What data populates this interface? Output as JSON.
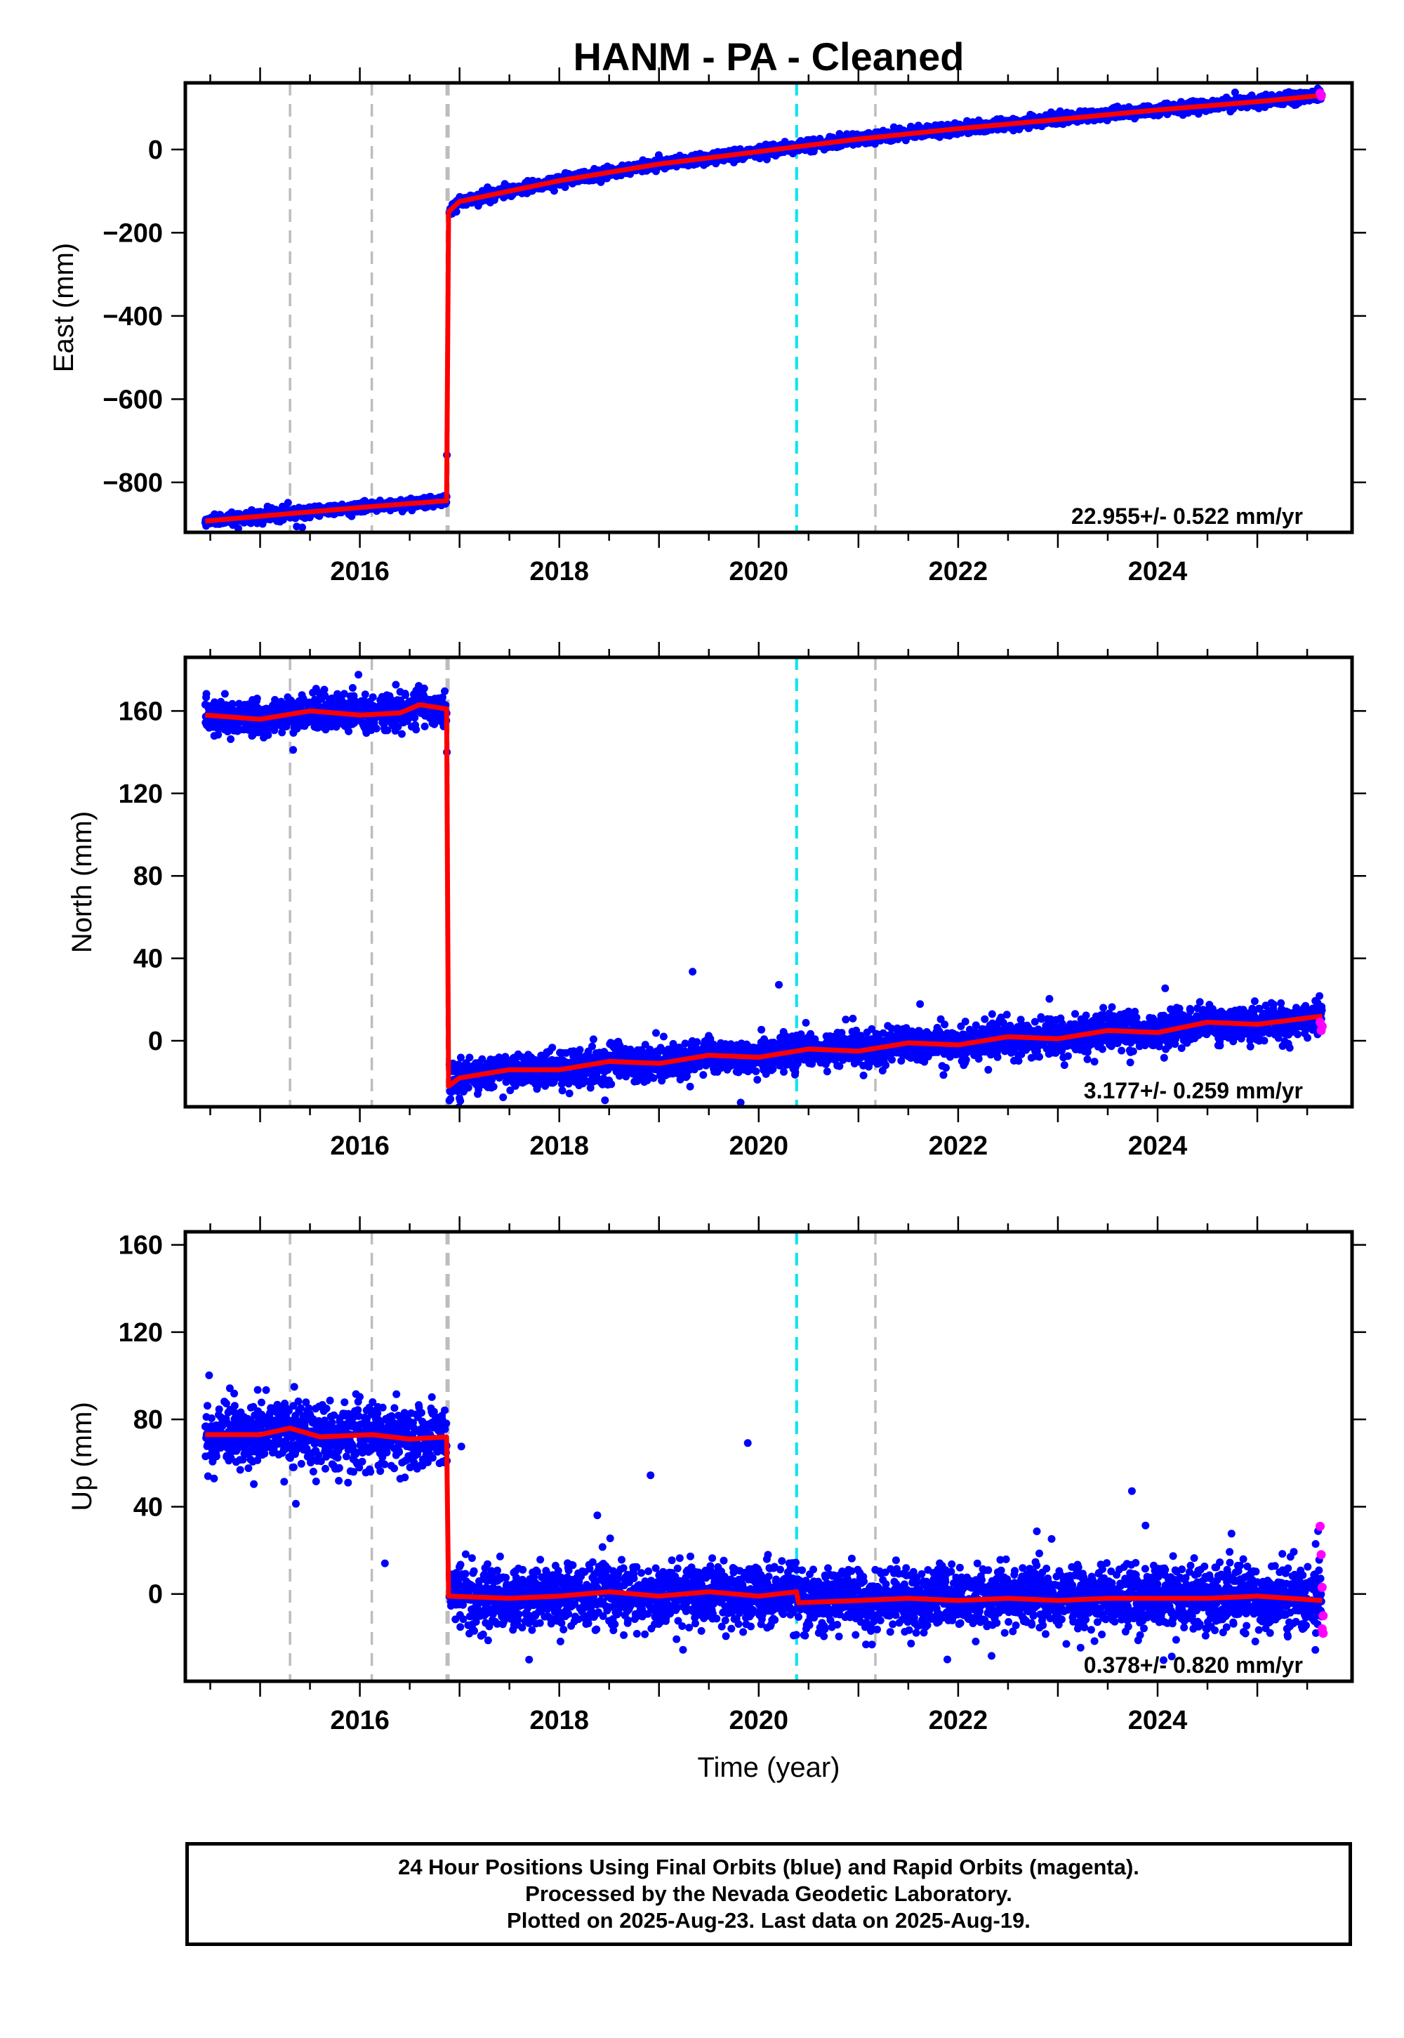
{
  "page": {
    "title": "HANM  - PA - Cleaned",
    "footer_lines": [
      "24 Hour Positions Using Final Orbits (blue) and Rapid Orbits (magenta).",
      "Processed by the Nevada Geodetic Laboratory.",
      "Plotted on 2025-Aug-23. Last data on 2025-Aug-19."
    ]
  },
  "chart_data": [
    {
      "type": "scatter",
      "panel": "east",
      "ylabel": "East (mm)",
      "xlabel": "",
      "xlim": [
        2014.25,
        2025.95
      ],
      "ylim": [
        -920,
        160
      ],
      "yticks": [
        0,
        -200,
        -400,
        -600,
        -800
      ],
      "xticks": [
        2016,
        2018,
        2020,
        2022,
        2024
      ],
      "rate_label": "22.955+/- 0.522 mm/yr",
      "steps": [
        2015.3,
        2016.12,
        2016.88,
        2021.17
      ],
      "highlight_line": 2020.38,
      "model": [
        [
          2014.45,
          -893
        ],
        [
          2015.3,
          -875
        ],
        [
          2016.12,
          -858
        ],
        [
          2016.87,
          -844
        ],
        [
          2016.89,
          -150
        ],
        [
          2017.0,
          -125
        ],
        [
          2017.5,
          -100
        ],
        [
          2018.0,
          -75
        ],
        [
          2019.0,
          -35
        ],
        [
          2020.0,
          -5
        ],
        [
          2021.0,
          25
        ],
        [
          2022.0,
          50
        ],
        [
          2023.0,
          72
        ],
        [
          2024.0,
          95
        ],
        [
          2025.0,
          115
        ],
        [
          2025.65,
          130
        ]
      ],
      "scatter_sd": 6,
      "rapid_points": [
        [
          2025.63,
          135
        ],
        [
          2025.64,
          128
        ]
      ]
    },
    {
      "type": "scatter",
      "panel": "north",
      "ylabel": "North (mm)",
      "xlabel": "",
      "xlim": [
        2014.25,
        2025.95
      ],
      "ylim": [
        -32,
        186
      ],
      "yticks": [
        160,
        120,
        80,
        40,
        0
      ],
      "xticks": [
        2016,
        2018,
        2020,
        2022,
        2024
      ],
      "rate_label": "3.177+/- 0.259 mm/yr",
      "steps": [
        2015.3,
        2016.12,
        2016.88,
        2021.17
      ],
      "highlight_line": 2020.38,
      "model": [
        [
          2014.45,
          158
        ],
        [
          2015.0,
          156
        ],
        [
          2015.5,
          160
        ],
        [
          2016.0,
          158
        ],
        [
          2016.4,
          159
        ],
        [
          2016.6,
          163
        ],
        [
          2016.87,
          161
        ],
        [
          2016.89,
          -22
        ],
        [
          2017.0,
          -18
        ],
        [
          2017.5,
          -14
        ],
        [
          2018.0,
          -14
        ],
        [
          2018.5,
          -10
        ],
        [
          2019.0,
          -11
        ],
        [
          2019.5,
          -7
        ],
        [
          2020.0,
          -8
        ],
        [
          2020.5,
          -4
        ],
        [
          2021.0,
          -5
        ],
        [
          2021.5,
          -1
        ],
        [
          2022.0,
          -2
        ],
        [
          2022.5,
          2
        ],
        [
          2023.0,
          1
        ],
        [
          2023.5,
          5
        ],
        [
          2024.0,
          4
        ],
        [
          2024.5,
          9
        ],
        [
          2025.0,
          8
        ],
        [
          2025.65,
          12
        ]
      ],
      "scatter_sd": 4,
      "rapid_points": [
        [
          2025.63,
          9
        ],
        [
          2025.64,
          5
        ],
        [
          2025.65,
          7
        ]
      ]
    },
    {
      "type": "scatter",
      "panel": "up",
      "ylabel": "Up (mm)",
      "xlabel": "Time (year)",
      "xlim": [
        2014.25,
        2025.95
      ],
      "ylim": [
        -40,
        166
      ],
      "yticks": [
        160,
        120,
        80,
        40,
        0
      ],
      "xticks": [
        2016,
        2018,
        2020,
        2022,
        2024
      ],
      "rate_label": "0.378+/- 0.820 mm/yr",
      "steps": [
        2015.3,
        2016.12,
        2016.88,
        2021.17
      ],
      "highlight_line": 2020.38,
      "model": [
        [
          2014.45,
          73
        ],
        [
          2015.0,
          73
        ],
        [
          2015.3,
          76
        ],
        [
          2015.6,
          72
        ],
        [
          2016.12,
          73
        ],
        [
          2016.5,
          71
        ],
        [
          2016.87,
          72
        ],
        [
          2016.89,
          -1
        ],
        [
          2017.5,
          -2
        ],
        [
          2018.0,
          -1
        ],
        [
          2018.5,
          1
        ],
        [
          2019.0,
          -1
        ],
        [
          2019.5,
          1
        ],
        [
          2020.0,
          -1
        ],
        [
          2020.38,
          1
        ],
        [
          2020.4,
          -4
        ],
        [
          2021.0,
          -3
        ],
        [
          2021.5,
          -2
        ],
        [
          2022.0,
          -3
        ],
        [
          2022.5,
          -2
        ],
        [
          2023.0,
          -3
        ],
        [
          2023.5,
          -2
        ],
        [
          2024.0,
          -2
        ],
        [
          2024.5,
          -2
        ],
        [
          2025.0,
          -1
        ],
        [
          2025.65,
          -3
        ]
      ],
      "scatter_sd": 7,
      "rapid_points": [
        [
          2025.63,
          31
        ],
        [
          2025.64,
          18
        ],
        [
          2025.65,
          3
        ],
        [
          2025.65,
          -16
        ],
        [
          2025.66,
          -18
        ],
        [
          2025.66,
          -10
        ]
      ]
    }
  ]
}
